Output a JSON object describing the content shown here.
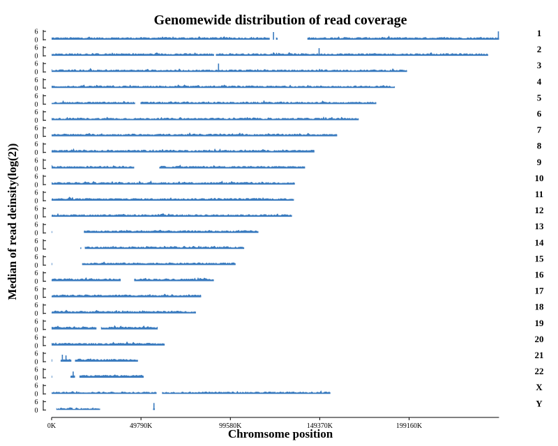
{
  "chart_data": {
    "type": "area",
    "title": "Genomewide distribution of read coverage",
    "xlabel": "Chromsome position",
    "ylabel": "Median of read deinsity(log(2))",
    "x_tick_labels": [
      "0K",
      "49790K",
      "99580K",
      "149370K",
      "199160K"
    ],
    "x_tick_values": [
      0,
      49790,
      99580,
      149370,
      199160
    ],
    "x_units": "K",
    "xlim": [
      0,
      249250
    ],
    "y_ticks": [
      0,
      6
    ],
    "ylim": [
      0,
      6
    ],
    "fill_color": "#3a7bbf",
    "series": [
      {
        "name": "1",
        "length": 249250,
        "baseline": 1.3,
        "segments": [
          [
            0,
            121500
          ],
          [
            125000,
            125900
          ],
          [
            142500,
            249250
          ]
        ],
        "spikes": [
          [
            123600,
            5.5
          ],
          [
            248900,
            6.0
          ]
        ]
      },
      {
        "name": "2",
        "length": 243200,
        "baseline": 1.3,
        "segments": [
          [
            0,
            90500
          ],
          [
            91500,
            243200
          ]
        ],
        "spikes": [
          [
            149000,
            5.5
          ]
        ]
      },
      {
        "name": "3",
        "length": 198000,
        "baseline": 1.2,
        "segments": [
          [
            0,
            198000
          ]
        ],
        "spikes": [
          [
            93000,
            6.0
          ]
        ]
      },
      {
        "name": "4",
        "length": 191200,
        "baseline": 1.2,
        "segments": [
          [
            0,
            191200
          ]
        ],
        "spikes": []
      },
      {
        "name": "5",
        "length": 180900,
        "baseline": 1.2,
        "segments": [
          [
            0,
            46500
          ],
          [
            49500,
            180900
          ]
        ],
        "spikes": []
      },
      {
        "name": "6",
        "length": 171100,
        "baseline": 1.2,
        "segments": [
          [
            0,
            171100
          ]
        ],
        "spikes": []
      },
      {
        "name": "7",
        "length": 159100,
        "baseline": 1.3,
        "segments": [
          [
            0,
            159100
          ]
        ],
        "spikes": []
      },
      {
        "name": "8",
        "length": 146400,
        "baseline": 1.3,
        "segments": [
          [
            0,
            146400
          ]
        ],
        "spikes": []
      },
      {
        "name": "9",
        "length": 141200,
        "baseline": 1.3,
        "segments": [
          [
            0,
            46000
          ],
          [
            60000,
            141200
          ]
        ],
        "spikes": []
      },
      {
        "name": "10",
        "length": 135500,
        "baseline": 1.3,
        "segments": [
          [
            0,
            135500
          ]
        ],
        "spikes": []
      },
      {
        "name": "11",
        "length": 135000,
        "baseline": 1.3,
        "segments": [
          [
            0,
            135000
          ]
        ],
        "spikes": []
      },
      {
        "name": "12",
        "length": 133900,
        "baseline": 1.3,
        "segments": [
          [
            0,
            133900
          ]
        ],
        "spikes": []
      },
      {
        "name": "13",
        "length": 115200,
        "baseline": 1.3,
        "segments": [
          [
            0,
            300
          ],
          [
            18000,
            115200
          ]
        ],
        "spikes": []
      },
      {
        "name": "14",
        "length": 107300,
        "baseline": 1.3,
        "segments": [
          [
            16000,
            16500
          ],
          [
            18500,
            107300
          ]
        ],
        "spikes": []
      },
      {
        "name": "15",
        "length": 102500,
        "baseline": 1.3,
        "segments": [
          [
            0,
            300
          ],
          [
            17000,
            102500
          ]
        ],
        "spikes": []
      },
      {
        "name": "16",
        "length": 90400,
        "baseline": 1.4,
        "segments": [
          [
            0,
            38500
          ],
          [
            46000,
            90400
          ]
        ],
        "spikes": []
      },
      {
        "name": "17",
        "length": 83300,
        "baseline": 1.4,
        "segments": [
          [
            0,
            83300
          ]
        ],
        "spikes": []
      },
      {
        "name": "18",
        "length": 80400,
        "baseline": 1.3,
        "segments": [
          [
            0,
            80400
          ]
        ],
        "spikes": []
      },
      {
        "name": "19",
        "length": 59100,
        "baseline": 1.5,
        "segments": [
          [
            0,
            25000
          ],
          [
            27500,
            59100
          ]
        ],
        "spikes": []
      },
      {
        "name": "20",
        "length": 63000,
        "baseline": 1.4,
        "segments": [
          [
            0,
            63000
          ]
        ],
        "spikes": []
      },
      {
        "name": "21",
        "length": 48100,
        "baseline": 1.5,
        "segments": [
          [
            0,
            300
          ],
          [
            5000,
            11000
          ],
          [
            13000,
            48100
          ]
        ],
        "spikes": [
          [
            6000,
            5.0
          ],
          [
            8000,
            4.5
          ]
        ]
      },
      {
        "name": "22",
        "length": 51300,
        "baseline": 1.5,
        "segments": [
          [
            0,
            300
          ],
          [
            10500,
            13000
          ],
          [
            15500,
            51300
          ]
        ],
        "spikes": [
          [
            12000,
            4.5
          ]
        ]
      },
      {
        "name": "X",
        "length": 155300,
        "baseline": 1.1,
        "segments": [
          [
            0,
            58500
          ],
          [
            61500,
            155300
          ]
        ],
        "spikes": []
      },
      {
        "name": "Y",
        "length": 59400,
        "baseline": 1.0,
        "segments": [
          [
            2600,
            27000
          ],
          [
            56500,
            57500
          ]
        ],
        "spikes": [
          [
            57000,
            5.0
          ]
        ]
      }
    ]
  }
}
